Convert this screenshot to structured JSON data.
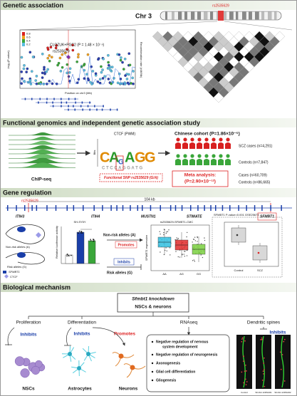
{
  "genetic_association": {
    "title": "Genetic association",
    "chromosome": "Chr 3",
    "snp": "rs2535629",
    "annotation": "CLOZUK+PGC2 (P = 1.48 × 10⁻⁸)",
    "snp_label": "rs2535629",
    "y_label": "-log₁₀(P-value)",
    "y2_label": "Recombination rate (cM/Mb)",
    "x_label": "Position on chr3 (Mb)",
    "r2_legend": [
      "0.8",
      "0.6",
      "0.4",
      "0.2"
    ]
  },
  "functional_genomics": {
    "title": "Functional genomics and independent genetic association study",
    "chip_label": "ChIP-seq",
    "motif_title": "CTCF (PWM)",
    "bits_label": "Bits",
    "functional_snp": "Functional SNP rs2535629 (G/A)",
    "cohort": "Chinese cohort (P=1.86×10⁻⁵)",
    "cases": "SCZ cases (n=4,291)",
    "controls": "Controls (n=7,847)",
    "meta_title": "Meta analysis:",
    "meta_p": "(P=2.90×10⁻¹²)",
    "meta_cases": "Cases (n=60,709)",
    "meta_controls": "Controls (n=86,665)"
  },
  "gene_regulation": {
    "title": "Gene regulation",
    "snp": "rs2535629",
    "distance": "104 kb",
    "genes": [
      "ITIH3",
      "ITIH4",
      "MUSTN1",
      "STIMATE",
      "SFMBT1"
    ],
    "non_risk": "Non-risk alleles (A)",
    "risk": "Risk alleles (G)",
    "legend": [
      "SFMBT1",
      "CTCF"
    ],
    "cell_line": "SH-SY5Y",
    "luciferase_label": "Relative luciferase activity",
    "mid_non_risk": "Non-risk alleles (A)",
    "promotes": "Promotes",
    "inhibits": "Inhibits",
    "mid_risk": "Risk alleles (G)",
    "eqtl_title": "rs2535629-SFMBT1-CMC",
    "expression_label": "SFMBT1 expression",
    "genotypes": [
      "AA",
      "AG",
      "GG"
    ],
    "geo_title": "SFMBT1 P-value=0.001 GSE25673",
    "groups": [
      "Control",
      "SCZ"
    ]
  },
  "biological_mechanism": {
    "title": "Biological mechanism",
    "knockdown": "Sfmbt1 knockdown",
    "cells": "NSCs & neurons",
    "branches": [
      "Proliferation",
      "Differentiation",
      "RNAseq",
      "Dendritic spines"
    ],
    "effects": [
      "Inhibits",
      "Inhibits",
      "Promotes",
      "Inhibits"
    ],
    "cell_types": [
      "NSCs",
      "Astrocytes",
      "Neurons"
    ],
    "rnaseq_terms": [
      "Negative regulation of nervous",
      "system development",
      "Negative regulation of neurogenesis",
      "Axonogenesis",
      "Glial cell differentiation",
      "Gliogenesis"
    ],
    "spine_labels": [
      "Control",
      "Sfmbt1 shRNA#1",
      "Sfmbt1 shRNA#2"
    ]
  }
}
